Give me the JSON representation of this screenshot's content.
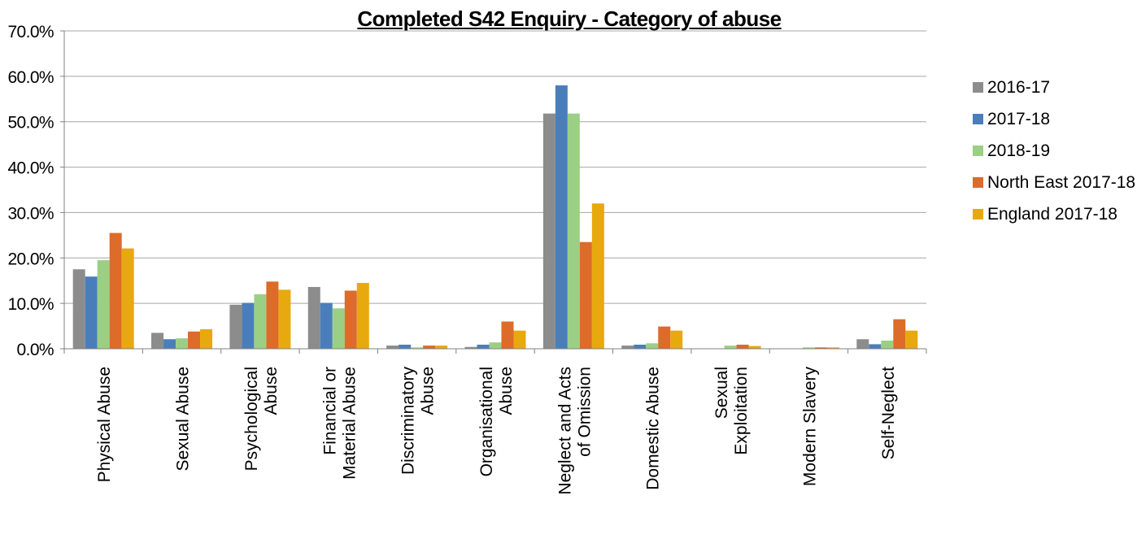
{
  "chart_data": {
    "type": "bar",
    "title": "Completed S42 Enquiry - Category of abuse",
    "xlabel": "",
    "ylabel": "",
    "ylim": [
      0,
      70
    ],
    "yticks": [
      "0.0%",
      "10.0%",
      "20.0%",
      "30.0%",
      "40.0%",
      "50.0%",
      "60.0%",
      "70.0%"
    ],
    "grid": true,
    "legend_position": "right",
    "categories": [
      [
        "Physical Abuse"
      ],
      [
        "Sexual Abuse"
      ],
      [
        "Psychological",
        "Abuse"
      ],
      [
        "Financial or",
        "Material Abuse"
      ],
      [
        "Discriminatory",
        "Abuse"
      ],
      [
        "Organisational",
        "Abuse"
      ],
      [
        "Neglect and Acts",
        "of Omission"
      ],
      [
        "Domestic Abuse"
      ],
      [
        "Sexual",
        "Exploitation"
      ],
      [
        "Modern Slavery"
      ],
      [
        "Self-Neglect"
      ]
    ],
    "series": [
      {
        "name": "2016-17",
        "color": "#8c8c8c",
        "values": [
          17.5,
          3.5,
          9.7,
          13.6,
          0.7,
          0.4,
          51.8,
          0.7,
          0.0,
          0.0,
          2.1
        ]
      },
      {
        "name": "2017-18",
        "color": "#4a7ebb",
        "values": [
          15.9,
          2.1,
          10.1,
          10.1,
          0.9,
          0.9,
          58.0,
          0.9,
          0.0,
          0.0,
          1.0
        ]
      },
      {
        "name": "2018-19",
        "color": "#9bd084",
        "values": [
          19.5,
          2.3,
          12.0,
          8.9,
          0.3,
          1.4,
          51.8,
          1.2,
          0.7,
          0.3,
          1.8
        ]
      },
      {
        "name": "North East 2017-18",
        "color": "#dd6b2a",
        "values": [
          25.5,
          3.8,
          14.8,
          12.8,
          0.7,
          6.0,
          23.5,
          4.9,
          0.9,
          0.3,
          6.5
        ]
      },
      {
        "name": "England 2017-18",
        "color": "#e8a90e",
        "values": [
          22.1,
          4.3,
          13.0,
          14.5,
          0.7,
          4.0,
          32.0,
          4.0,
          0.6,
          0.3,
          4.0
        ]
      }
    ]
  }
}
